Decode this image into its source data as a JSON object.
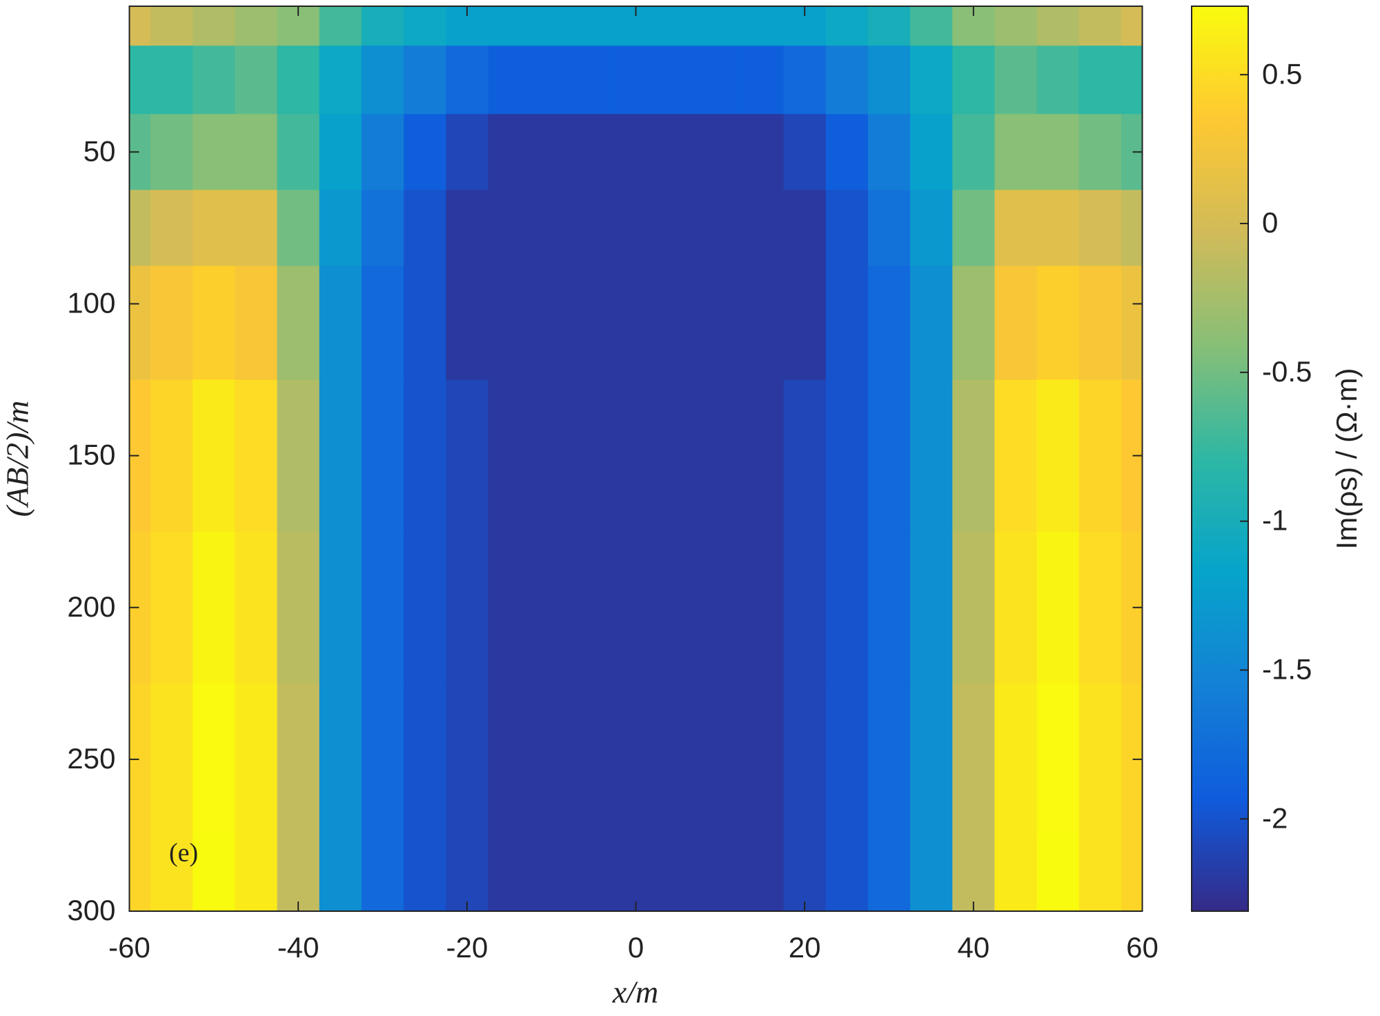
{
  "chart_data": {
    "type": "contour",
    "xlabel": "x/m",
    "ylabel": "(AB/2)/m",
    "colorbar_label": "Im(ρs) / (Ω·m)",
    "annotation": "(e)",
    "xlim": [
      -60,
      60
    ],
    "xticks": [
      -60,
      -40,
      -20,
      0,
      20,
      40,
      60
    ],
    "ylim": [
      2,
      300
    ],
    "y_reversed": true,
    "yticks": [
      50,
      100,
      150,
      200,
      250,
      300
    ],
    "clim": [
      -2.31,
      0.73
    ],
    "cticks": [
      -2,
      -1.5,
      -1,
      -0.5,
      0,
      0.5
    ],
    "colormap": [
      "#352a87",
      "#0f5cdd",
      "#1481d6",
      "#06a4ca",
      "#2eb7a4",
      "#87bf77",
      "#d1bb59",
      "#fec832",
      "#f9fb0e"
    ],
    "x": [
      -60,
      -55,
      -50,
      -45,
      -40,
      -35,
      -30,
      -25,
      -20,
      -15,
      -10,
      -5,
      0,
      5,
      10,
      15,
      20,
      25,
      30,
      35,
      40,
      45,
      50,
      55,
      60
    ],
    "y": [
      5,
      25,
      50,
      75,
      100,
      150,
      200,
      250,
      300
    ],
    "z": [
      [
        0,
        -0.1,
        -0.2,
        -0.3,
        -0.4,
        -0.7,
        -1.0,
        -1.1,
        -1.2,
        -1.2,
        -1.2,
        -1.2,
        -1.2,
        -1.2,
        -1.2,
        -1.2,
        -1.2,
        -1.1,
        -1.0,
        -0.7,
        -0.4,
        -0.3,
        -0.2,
        -0.1,
        0
      ],
      [
        -0.8,
        -0.8,
        -0.7,
        -0.6,
        -0.8,
        -1.1,
        -1.4,
        -1.6,
        -1.8,
        -1.9,
        -1.9,
        -1.9,
        -1.9,
        -1.9,
        -1.9,
        -1.9,
        -1.8,
        -1.6,
        -1.4,
        -1.1,
        -0.8,
        -0.6,
        -0.7,
        -0.8,
        -0.8
      ],
      [
        -0.6,
        -0.5,
        -0.4,
        -0.4,
        -0.7,
        -1.2,
        -1.6,
        -1.9,
        -2.1,
        -2.2,
        -2.2,
        -2.2,
        -2.2,
        -2.2,
        -2.2,
        -2.2,
        -2.1,
        -1.9,
        -1.6,
        -1.2,
        -0.7,
        -0.4,
        -0.4,
        -0.5,
        -0.6
      ],
      [
        -0.1,
        0,
        0.1,
        0.1,
        -0.5,
        -1.3,
        -1.7,
        -2.0,
        -2.2,
        -2.2,
        -2.2,
        -2.2,
        -2.2,
        -2.2,
        -2.2,
        -2.2,
        -2.2,
        -2.0,
        -1.7,
        -1.3,
        -0.5,
        0.1,
        0.1,
        0,
        -0.1
      ],
      [
        0.2,
        0.3,
        0.4,
        0.3,
        -0.3,
        -1.4,
        -1.8,
        -2.0,
        -2.2,
        -2.2,
        -2.2,
        -2.2,
        -2.2,
        -2.2,
        -2.2,
        -2.2,
        -2.2,
        -2.0,
        -1.8,
        -1.4,
        -0.3,
        0.3,
        0.4,
        0.3,
        0.2
      ],
      [
        0.35,
        0.45,
        0.6,
        0.5,
        -0.2,
        -1.4,
        -1.8,
        -2.0,
        -2.1,
        -2.2,
        -2.2,
        -2.2,
        -2.2,
        -2.2,
        -2.2,
        -2.2,
        -2.1,
        -2.0,
        -1.8,
        -1.4,
        -0.2,
        0.5,
        0.6,
        0.45,
        0.35
      ],
      [
        0.4,
        0.5,
        0.68,
        0.55,
        -0.15,
        -1.4,
        -1.8,
        -2.0,
        -2.1,
        -2.2,
        -2.2,
        -2.2,
        -2.2,
        -2.2,
        -2.2,
        -2.2,
        -2.1,
        -2.0,
        -1.8,
        -1.4,
        -0.15,
        0.55,
        0.68,
        0.5,
        0.4
      ],
      [
        0.45,
        0.55,
        0.72,
        0.6,
        -0.1,
        -1.4,
        -1.8,
        -2.0,
        -2.1,
        -2.2,
        -2.2,
        -2.2,
        -2.2,
        -2.2,
        -2.2,
        -2.2,
        -2.1,
        -2.0,
        -1.8,
        -1.4,
        -0.1,
        0.6,
        0.72,
        0.55,
        0.45
      ],
      [
        0.45,
        0.55,
        0.73,
        0.6,
        -0.1,
        -1.4,
        -1.8,
        -2.0,
        -2.1,
        -2.2,
        -2.2,
        -2.2,
        -2.2,
        -2.2,
        -2.2,
        -2.2,
        -2.1,
        -2.0,
        -1.8,
        -1.4,
        -0.1,
        0.6,
        0.73,
        0.55,
        0.45
      ]
    ]
  }
}
